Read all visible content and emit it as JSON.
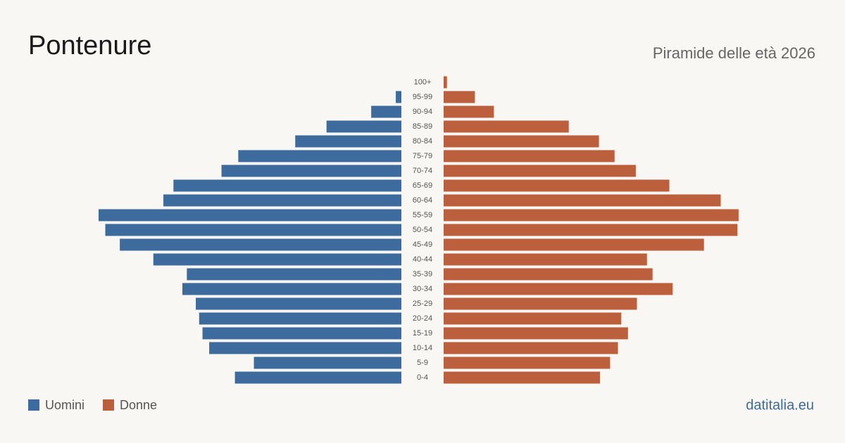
{
  "chart_data": {
    "type": "pyramid",
    "title": "Pontenure",
    "subtitle": "Piramide delle età 2026",
    "source": "datitalia.eu",
    "categories": [
      "100+",
      "95-99",
      "90-94",
      "85-89",
      "80-84",
      "75-79",
      "70-74",
      "65-69",
      "60-64",
      "55-59",
      "50-54",
      "45-49",
      "40-44",
      "35-39",
      "30-34",
      "25-29",
      "20-24",
      "15-19",
      "10-14",
      "5-9",
      "0-4"
    ],
    "series": [
      {
        "name": "Uomini",
        "color": "#3d6b9e",
        "values": [
          0,
          5,
          27,
          67,
          95,
          146,
          161,
          204,
          213,
          271,
          265,
          252,
          222,
          192,
          196,
          184,
          181,
          178,
          172,
          132,
          149
        ]
      },
      {
        "name": "Donne",
        "color": "#bb5f3d",
        "values": [
          3,
          28,
          45,
          112,
          139,
          153,
          172,
          202,
          248,
          264,
          263,
          233,
          182,
          187,
          205,
          173,
          159,
          165,
          156,
          149,
          140
        ]
      }
    ]
  }
}
